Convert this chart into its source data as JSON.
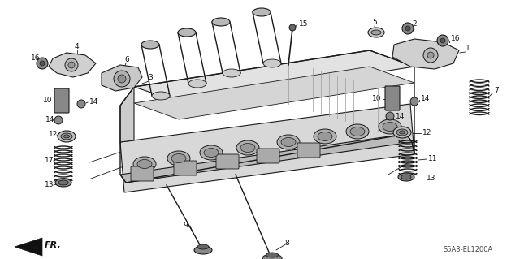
{
  "bg_color": "#ffffff",
  "fig_width": 6.4,
  "fig_height": 3.19,
  "line_color": "#1a1a1a",
  "label_fontsize": 6.5,
  "ref_code": "S5A3-EL1200A",
  "engine_color": "#f0f0f0",
  "engine_dark": "#d0d0d0",
  "engine_darker": "#b8b8b8",
  "part_gray": "#c0c0c0",
  "part_dark": "#808080"
}
